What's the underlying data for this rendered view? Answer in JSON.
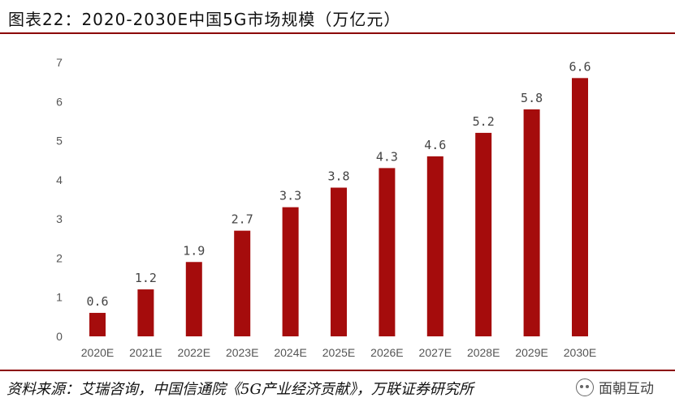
{
  "header": {
    "title": "图表22：2020-2030E中国5G市场规模（万亿元）"
  },
  "chart_data": {
    "type": "bar",
    "categories": [
      "2020E",
      "2021E",
      "2022E",
      "2023E",
      "2024E",
      "2025E",
      "2026E",
      "2027E",
      "2028E",
      "2029E",
      "2030E"
    ],
    "values": [
      0.6,
      1.2,
      1.9,
      2.7,
      3.3,
      3.8,
      4.3,
      4.6,
      5.2,
      5.8,
      6.6
    ],
    "data_labels": [
      "0.6",
      "1.2",
      "1.9",
      "2.7",
      "3.3",
      "3.8",
      "4.3",
      "4.6",
      "5.2",
      "5.8",
      "6.6"
    ],
    "yticks": [
      "0",
      "1",
      "2",
      "3",
      "4",
      "5",
      "6",
      "7"
    ],
    "ylim": [
      0,
      7
    ],
    "grid": false,
    "colors": {
      "bar": "#a50c0c",
      "rule": "#8b0000"
    }
  },
  "footer": {
    "source": "资料来源：艾瑞咨询，中国信通院《5G产业经济贡献》，万联证券研究所",
    "watermark": "面朝互动",
    "watermark_icon": "wechat-icon"
  }
}
